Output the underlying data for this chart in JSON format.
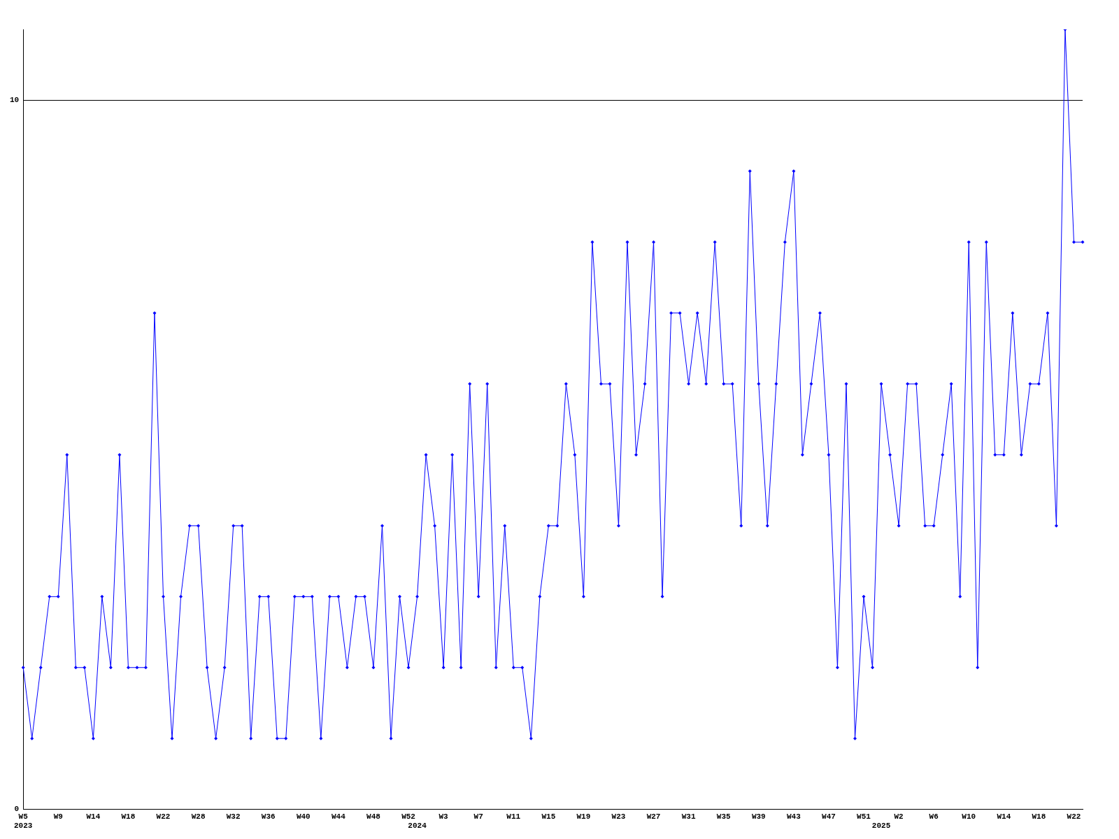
{
  "chart_data": {
    "type": "line",
    "categories": [
      "W5\n2023",
      null,
      null,
      null,
      "W9",
      null,
      null,
      null,
      "W14",
      null,
      null,
      null,
      "W18",
      null,
      null,
      null,
      "W22",
      null,
      null,
      null,
      "W28",
      null,
      null,
      null,
      "W32",
      null,
      null,
      null,
      "W36",
      null,
      null,
      null,
      "W40",
      null,
      null,
      null,
      "W44",
      null,
      null,
      null,
      "W48",
      null,
      null,
      null,
      "W52",
      "\n2024",
      null,
      null,
      "W3",
      null,
      null,
      null,
      "W7",
      null,
      null,
      null,
      "W11",
      null,
      null,
      null,
      "W15",
      null,
      null,
      null,
      "W19",
      null,
      null,
      null,
      "W23",
      null,
      null,
      null,
      "W27",
      null,
      null,
      null,
      "W31",
      null,
      null,
      null,
      "W35",
      null,
      null,
      null,
      "W39",
      null,
      null,
      null,
      "W43",
      null,
      null,
      null,
      "W47",
      null,
      null,
      null,
      "W51",
      null,
      "\n2025",
      null,
      "W2",
      null,
      null,
      null,
      "W6",
      null,
      null,
      null,
      "W10",
      null,
      null,
      null,
      "W14",
      null,
      null,
      null,
      "W18",
      null,
      null,
      null,
      "W22",
      null
    ],
    "series": [
      {
        "color": "#0000ff",
        "values": [
          2,
          1,
          2,
          3,
          3,
          5,
          2,
          2,
          1,
          3,
          2,
          5,
          2,
          2,
          2,
          7,
          3,
          1,
          3,
          4,
          4,
          2,
          1,
          2,
          4,
          4,
          1,
          3,
          3,
          1,
          1,
          3,
          3,
          3,
          1,
          3,
          3,
          2,
          3,
          3,
          2,
          4,
          1,
          3,
          2,
          3,
          5,
          4,
          2,
          5,
          2,
          6,
          3,
          6,
          2,
          4,
          2,
          2,
          1,
          3,
          4,
          4,
          6,
          5,
          3,
          8,
          6,
          6,
          4,
          8,
          5,
          6,
          8,
          3,
          7,
          7,
          6,
          7,
          6,
          8,
          6,
          6,
          4,
          9,
          6,
          4,
          6,
          8,
          9,
          5,
          6,
          7,
          5,
          2,
          6,
          1,
          3,
          2,
          6,
          5,
          4,
          6,
          6,
          4,
          4,
          5,
          6,
          3,
          8,
          2,
          8,
          5,
          5,
          7,
          5,
          6,
          6,
          7,
          4,
          11,
          8,
          8
        ]
      }
    ],
    "ylim": [
      0,
      11
    ],
    "yticks": [
      0,
      10
    ],
    "grid": "y",
    "legend": false,
    "marker": "diamond",
    "line_style": "solid"
  }
}
